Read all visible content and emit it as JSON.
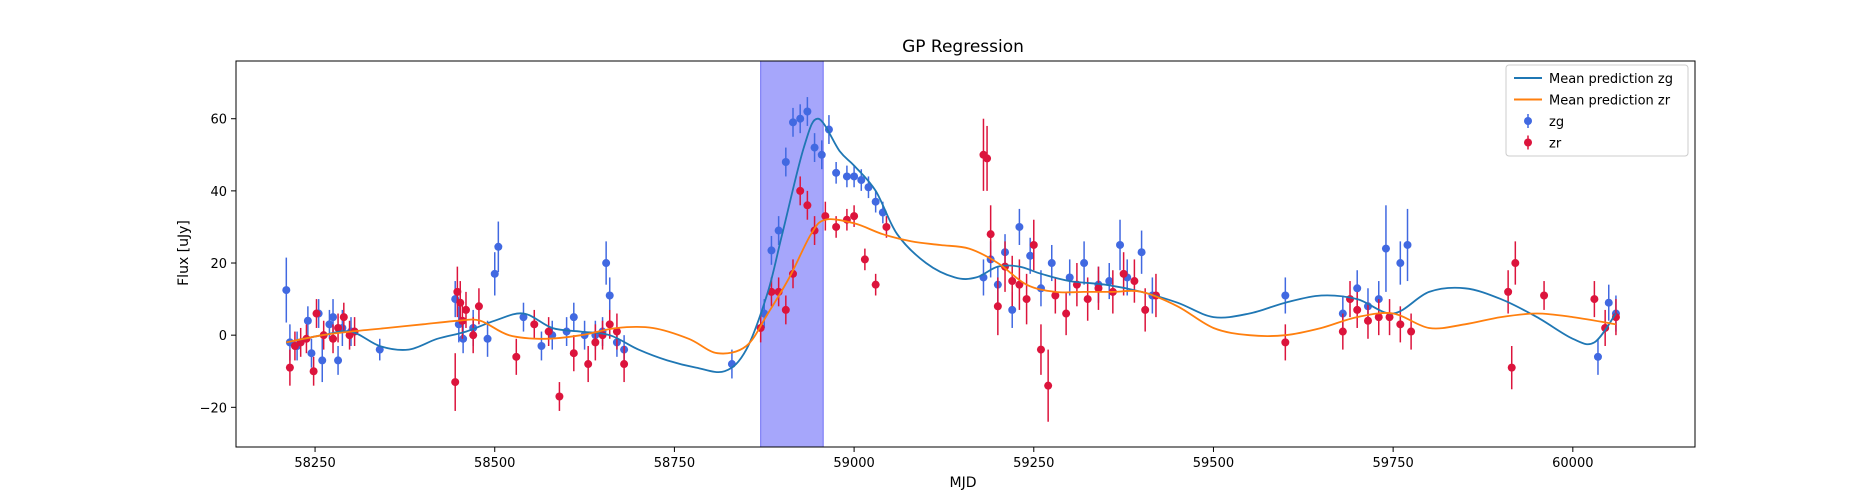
{
  "chart_data": {
    "type": "scatter",
    "title": "GP Regression",
    "xlabel": "MJD",
    "ylabel": "Flux [uJy]",
    "xlim": [
      58140,
      60170
    ],
    "ylim": [
      -31,
      76
    ],
    "xticks": [
      58250,
      58500,
      58750,
      59000,
      59250,
      59500,
      59750,
      60000
    ],
    "yticks": [
      -20,
      0,
      20,
      40,
      60
    ],
    "grid": false,
    "legend_position": "top-right",
    "highlight_band": {
      "x0": 58870,
      "x1": 58957,
      "color": "#a6a6fb"
    },
    "series": [
      {
        "name": "Mean prediction zg",
        "kind": "line",
        "color": "#1f77b4",
        "x": [
          58210,
          58260,
          58300,
          58340,
          58380,
          58420,
          58460,
          58500,
          58540,
          58580,
          58620,
          58660,
          58700,
          58740,
          58780,
          58820,
          58850,
          58880,
          58900,
          58930,
          58950,
          58980,
          59000,
          59030,
          59060,
          59100,
          59140,
          59170,
          59200,
          59230,
          59260,
          59300,
          59350,
          59400,
          59450,
          59500,
          59550,
          59600,
          59650,
          59700,
          59750,
          59800,
          59850,
          59900,
          59950,
          60000,
          60030,
          60060
        ],
        "values": [
          -2,
          0,
          1,
          -3,
          -4,
          -1,
          1,
          4,
          6,
          2,
          1,
          0,
          -4,
          -7,
          -9,
          -10,
          -4,
          12,
          28,
          52,
          60,
          51,
          47,
          40,
          28,
          20,
          16,
          16,
          19,
          19,
          17,
          15,
          14,
          12,
          9,
          5,
          6,
          9,
          11,
          10,
          6,
          12,
          13,
          10,
          5,
          -1,
          -2,
          6
        ]
      },
      {
        "name": "Mean prediction zr",
        "kind": "line",
        "color": "#ff7f0e",
        "x": [
          58210,
          58260,
          58300,
          58350,
          58400,
          58450,
          58480,
          58520,
          58570,
          58620,
          58670,
          58720,
          58770,
          58810,
          58850,
          58880,
          58910,
          58940,
          58960,
          59000,
          59040,
          59080,
          59120,
          59160,
          59200,
          59240,
          59280,
          59320,
          59360,
          59400,
          59450,
          59500,
          59550,
          59600,
          59650,
          59700,
          59750,
          59800,
          59850,
          59900,
          59950,
          60000,
          60060
        ],
        "values": [
          -2,
          0,
          1,
          2,
          3,
          4,
          4,
          0,
          -1,
          0,
          2,
          2,
          -1,
          -5,
          -3,
          6,
          16,
          28,
          32,
          31,
          28,
          26,
          25,
          24,
          20,
          14,
          12,
          12,
          12,
          12,
          8,
          2,
          0,
          0,
          2,
          5,
          6,
          2,
          3,
          5,
          6,
          5,
          3
        ]
      },
      {
        "name": "zg",
        "kind": "errorbar",
        "color": "#4169e1",
        "x": [
          58210,
          58215,
          58225,
          58240,
          58245,
          58255,
          58260,
          58270,
          58275,
          58282,
          58288,
          58300,
          58340,
          58445,
          58450,
          58456,
          58470,
          58490,
          58500,
          58505,
          58540,
          58565,
          58580,
          58600,
          58610,
          58625,
          58640,
          58650,
          58655,
          58660,
          58670,
          58680,
          58830,
          58875,
          58885,
          58895,
          58905,
          58915,
          58925,
          58935,
          58945,
          58955,
          58965,
          58975,
          58990,
          59000,
          59010,
          59020,
          59030,
          59040,
          59180,
          59190,
          59200,
          59210,
          59220,
          59230,
          59245,
          59260,
          59275,
          59300,
          59320,
          59340,
          59355,
          59370,
          59380,
          59400,
          59415,
          59600,
          59680,
          59700,
          59715,
          59730,
          59740,
          59760,
          59770,
          60035,
          60050,
          60060
        ],
        "values": [
          12.5,
          -2,
          -3,
          4,
          -5,
          6,
          -7,
          3,
          5,
          -7,
          2,
          1,
          -4,
          10,
          3,
          -1,
          2,
          -1,
          17,
          24.5,
          5,
          -3,
          0,
          1,
          5,
          0,
          0,
          1,
          20,
          11,
          -2,
          -4,
          -8,
          6,
          23.5,
          29,
          48,
          59,
          60,
          62,
          52,
          50,
          57,
          45,
          44,
          44,
          43,
          41,
          37,
          34,
          16,
          21,
          14,
          23,
          7,
          30,
          22,
          13,
          20,
          16,
          20,
          14,
          15,
          25,
          16,
          23,
          11,
          11,
          6,
          13,
          8,
          10,
          24,
          20,
          25,
          -6,
          9,
          6
        ],
        "errors": [
          9,
          5,
          4,
          4,
          4,
          4,
          6,
          4,
          5,
          4,
          5,
          4,
          3,
          5,
          5,
          4,
          5,
          5,
          6,
          7,
          4,
          4,
          4,
          4,
          4,
          4,
          4,
          4,
          6,
          5,
          4,
          4,
          4,
          4,
          4,
          4,
          4,
          4,
          4,
          4,
          4,
          4,
          4,
          3,
          3,
          3,
          3,
          3,
          3,
          3,
          5,
          5,
          5,
          5,
          5,
          5,
          5,
          5,
          5,
          5,
          6,
          5,
          5,
          7,
          5,
          6,
          5,
          5,
          5,
          5,
          5,
          5,
          12,
          6,
          10,
          5,
          5,
          5
        ]
      },
      {
        "name": "zr",
        "kind": "errorbar",
        "color": "#dc143c",
        "x": [
          58215,
          58222,
          58230,
          58238,
          58248,
          58252,
          58262,
          58275,
          58282,
          58290,
          58298,
          58305,
          58445,
          58448,
          58452,
          58455,
          58460,
          58470,
          58478,
          58530,
          58555,
          58575,
          58590,
          58610,
          58630,
          58640,
          58650,
          58660,
          58670,
          58680,
          58870,
          58885,
          58895,
          58905,
          58915,
          58925,
          58935,
          58945,
          58960,
          58975,
          58990,
          59000,
          59015,
          59030,
          59045,
          59180,
          59185,
          59190,
          59200,
          59210,
          59220,
          59230,
          59240,
          59250,
          59260,
          59270,
          59280,
          59295,
          59310,
          59325,
          59340,
          59360,
          59375,
          59390,
          59405,
          59420,
          59600,
          59680,
          59690,
          59700,
          59715,
          59730,
          59745,
          59760,
          59775,
          59910,
          59915,
          59920,
          59960,
          60030,
          60045,
          60060
        ],
        "values": [
          -9,
          -3,
          -2,
          -1,
          -10,
          6,
          0,
          -1,
          2,
          5,
          0,
          1,
          -13,
          12,
          9,
          4,
          7,
          0,
          8,
          -6,
          3,
          1,
          -17,
          -5,
          -8,
          -2,
          0,
          3,
          1,
          -8,
          2,
          12,
          12,
          7,
          17,
          40,
          36,
          29,
          33,
          30,
          32,
          33,
          21,
          14,
          30,
          50,
          49,
          28,
          8,
          19,
          15,
          14,
          10,
          25,
          -4,
          -14,
          11,
          6,
          14,
          10,
          13,
          12,
          17,
          15,
          7,
          11,
          -2,
          1,
          10,
          7,
          4,
          5,
          5,
          3,
          1,
          12,
          -9,
          20,
          11,
          10,
          2,
          5
        ],
        "errors": [
          5,
          4,
          4,
          4,
          4,
          4,
          4,
          4,
          4,
          4,
          4,
          4,
          8,
          7,
          6,
          5,
          5,
          5,
          5,
          5,
          4,
          4,
          4,
          5,
          5,
          5,
          4,
          4,
          5,
          5,
          4,
          4,
          4,
          4,
          4,
          4,
          4,
          4,
          4,
          3,
          3,
          3,
          3,
          3,
          3,
          10,
          9,
          8,
          8,
          7,
          7,
          7,
          7,
          7,
          7,
          10,
          5,
          6,
          6,
          6,
          6,
          6,
          6,
          6,
          6,
          6,
          5,
          5,
          5,
          5,
          5,
          5,
          5,
          5,
          5,
          6,
          6,
          6,
          4,
          5,
          5,
          5
        ]
      }
    ]
  }
}
